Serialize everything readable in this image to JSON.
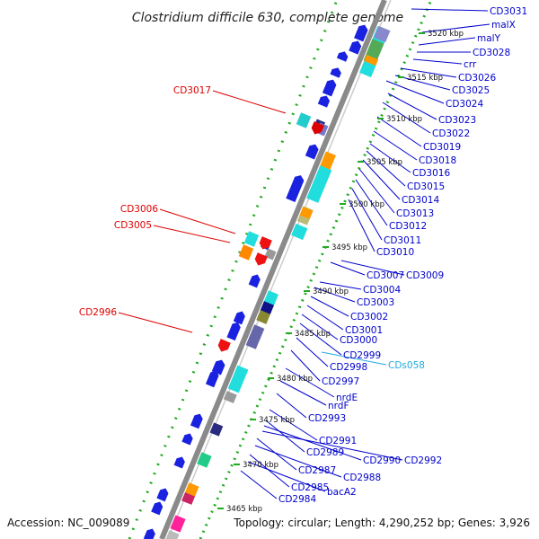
{
  "title": "Clostridium difficile 630, complete genome",
  "footer": {
    "accession": "Accession: NC_009089",
    "topology": "Topology: circular; Length: 4,290,252 bp; Genes: 3,926"
  },
  "colors": {
    "forward_label": "#0000cc",
    "reverse_label": "#dd0000",
    "rna_label": "#22aadd",
    "backbone": "#8a8a8a",
    "ruler_dots": "#22aa22"
  },
  "scale_marks": [
    "3520 kbp",
    "3515 kbp",
    "3510 kbp",
    "3505 kbp",
    "3500 kbp",
    "3495 kbp",
    "3490 kbp",
    "3485 kbp",
    "3480 kbp",
    "3475 kbp",
    "3470 kbp",
    "3465 kbp"
  ],
  "right_labels": [
    "CD3031",
    "malX",
    "malY",
    "CD3028",
    "crr",
    "CD3026",
    "CD3025",
    "CD3024",
    "CD3023",
    "CD3022",
    "CD3019",
    "CD3018",
    "CD3016",
    "CD3015",
    "CD3014",
    "CD3013",
    "CD3012",
    "CD3011",
    "CD3010",
    "CD3007",
    "CD3009",
    "CD3004",
    "CD3003",
    "CD3002",
    "CD3001",
    "CD3000",
    "CD2999",
    "CDs058",
    "CD2998",
    "CD2997",
    "nrdE",
    "nrdF",
    "CD2993",
    "CD2991",
    "CD2989",
    "CD2990",
    "CD2992",
    "CD2987",
    "CD2988",
    "CD2985",
    "bacA2",
    "CD2984"
  ],
  "left_labels": [
    "CD3017",
    "CD3006",
    "CD3005",
    "CD2996"
  ]
}
